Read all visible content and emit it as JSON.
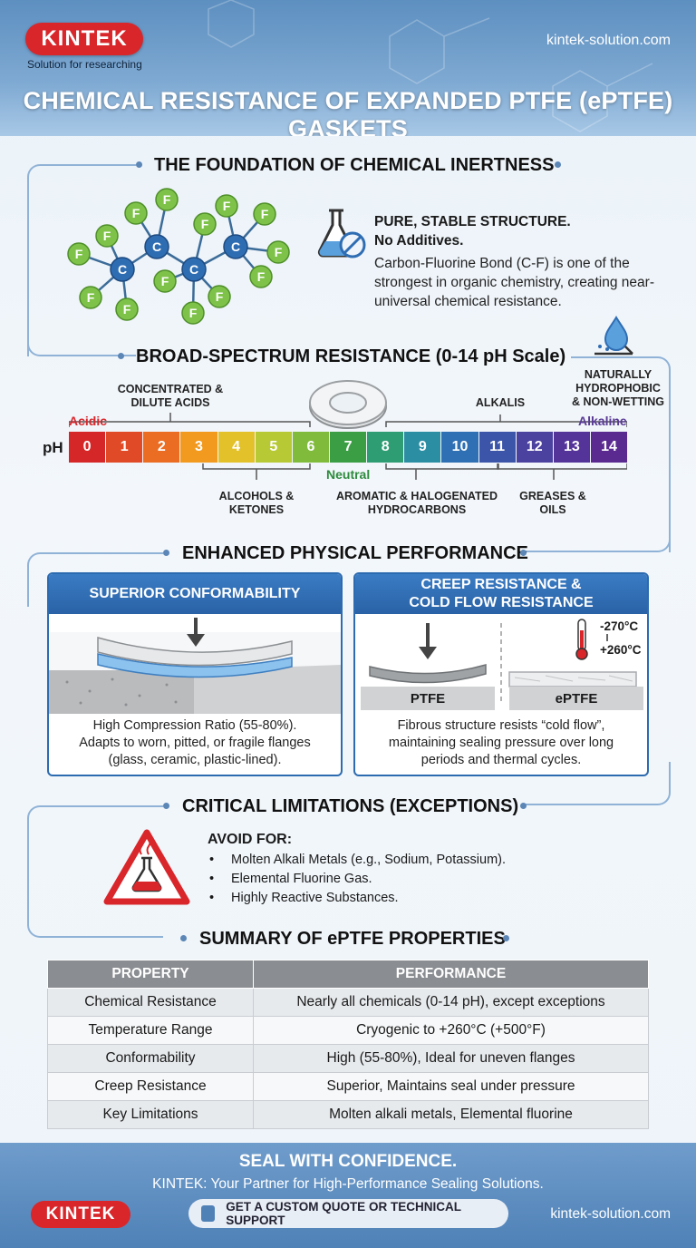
{
  "header": {
    "logo": "KINTEK",
    "tagline": "Solution for researching",
    "site": "kintek-solution.com",
    "title": "CHEMICAL RESISTANCE OF EXPANDED PTFE (ePTFE) GASKETS"
  },
  "foundation": {
    "title": "THE FOUNDATION OF CHEMICAL INERTNESS",
    "molecule_atoms": [
      "C",
      "C",
      "C",
      "C",
      "F"
    ],
    "heading_line1": "PURE, STABLE STRUCTURE.",
    "heading_line2": "No Additives.",
    "body": "Carbon-Fluorine Bond (C-F) is one of the strongest in organic chemistry, creating near-universal chemical resistance.",
    "icon": "no-additives-flask-icon"
  },
  "spectrum": {
    "title": "BROAD-SPECTRUM RESISTANCE (0-14 pH Scale)",
    "hydrophobic": "NATURALLY HYDROPHOBIC & NON-WETTING",
    "acids_label": "CONCENTRATED & DILUTE ACIDS",
    "alkalis_label": "ALKALIS",
    "acidic": "Acidic",
    "alkaline": "Alkaline",
    "neutral": "Neutral",
    "ph_letter": "pH",
    "scale": [
      "0",
      "1",
      "2",
      "3",
      "4",
      "5",
      "6",
      "7",
      "8",
      "9",
      "10",
      "11",
      "12",
      "13",
      "14"
    ],
    "scale_colors": [
      "#d62728",
      "#e04a26",
      "#ea6d23",
      "#f29a1f",
      "#e3c12a",
      "#b7c934",
      "#80bb3c",
      "#3b9d44",
      "#2f9d74",
      "#2c8ea3",
      "#2f6fb3",
      "#3d55a8",
      "#4b419f",
      "#55349a",
      "#5a2a90"
    ],
    "alcohols_label": "ALCOHOLS & KETONES",
    "aromatic_label": "AROMATIC & HALOGENATED HYDROCARBONS",
    "greases_label": "GREASES & OILS"
  },
  "physical": {
    "title": "ENHANCED PHYSICAL PERFORMANCE",
    "conform_title": "SUPERIOR CONFORMABILITY",
    "conform_text": "High Compression Ratio (55-80%). Adapts to worn, pitted, or fragile flanges (glass, ceramic, plastic-lined).",
    "creep_title_1": "CREEP RESISTANCE &",
    "creep_title_2": "COLD FLOW RESISTANCE",
    "temp_low": "-270°C",
    "temp_high": "+260°C",
    "label_ptfe": "PTFE",
    "label_eptfe": "ePTFE",
    "creep_text": "Fibrous structure resists “cold flow”, maintaining sealing pressure over long periods and thermal cycles."
  },
  "limitations": {
    "title": "CRITICAL LIMITATIONS (EXCEPTIONS)",
    "avoid": "AVOID FOR:",
    "items": [
      "Molten Alkali Metals (e.g., Sodium, Potassium).",
      "Elemental Fluorine Gas.",
      "Highly Reactive Substances."
    ],
    "icon": "hazard-warning-icon"
  },
  "summary": {
    "title": "SUMMARY OF ePTFE PROPERTIES",
    "headers": [
      "PROPERTY",
      "PERFORMANCE"
    ],
    "rows": [
      [
        "Chemical Resistance",
        "Nearly all chemicals (0-14 pH), except exceptions"
      ],
      [
        "Temperature Range",
        "Cryogenic to +260°C (+500°F)"
      ],
      [
        "Conformability",
        "High (55-80%), Ideal for uneven flanges"
      ],
      [
        "Creep Resistance",
        "Superior, Maintains seal under pressure"
      ],
      [
        "Key Limitations",
        "Molten alkali metals, Elemental fluorine"
      ]
    ]
  },
  "footer": {
    "title": "SEAL WITH CONFIDENCE.",
    "subtitle": "KINTEK: Your Partner for High-Performance Sealing Solutions.",
    "logo": "KINTEK",
    "cta": "GET A CUSTOM QUOTE OR TECHNICAL SUPPORT",
    "site": "kintek-solution.com"
  }
}
